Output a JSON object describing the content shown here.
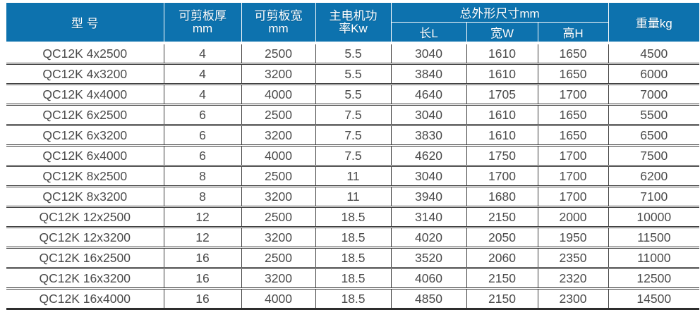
{
  "chart_data": {
    "type": "table",
    "column_keys": [
      "model",
      "cut_thickness",
      "cut_width",
      "motor_power",
      "dim_length",
      "dim_width",
      "dim_height",
      "weight"
    ],
    "header": {
      "model": "型 号",
      "cut_thickness_line1": "可剪板厚",
      "cut_thickness_line2": "mm",
      "cut_width_line1": "可剪板宽",
      "cut_width_line2": "mm",
      "motor_power_line1": "主电机功",
      "motor_power_line2": "率Kw",
      "dimensions_group": "总外形尺寸mm",
      "dim_length": "长L",
      "dim_width": "宽W",
      "dim_height": "高H",
      "weight": "重量kg"
    },
    "rows": [
      [
        "QC12K 4x2500",
        "4",
        "2500",
        "5.5",
        "3040",
        "1610",
        "1650",
        "4500"
      ],
      [
        "QC12K 4x3200",
        "4",
        "3200",
        "5.5",
        "3840",
        "1610",
        "1650",
        "6000"
      ],
      [
        "QC12K 4x4000",
        "4",
        "4000",
        "5.5",
        "4640",
        "1705",
        "1700",
        "7000"
      ],
      [
        "QC12K 6x2500",
        "6",
        "2500",
        "7.5",
        "3040",
        "1610",
        "1650",
        "5500"
      ],
      [
        "QC12K 6x3200",
        "6",
        "3200",
        "7.5",
        "3830",
        "1610",
        "1650",
        "6500"
      ],
      [
        "QC12K 6x4000",
        "6",
        "4000",
        "7.5",
        "4620",
        "1750",
        "1700",
        "7500"
      ],
      [
        "QC12K 8x2500",
        "8",
        "2500",
        "11",
        "3040",
        "1700",
        "1700",
        "6200"
      ],
      [
        "QC12K 8x3200",
        "8",
        "3200",
        "11",
        "3940",
        "1680",
        "1700",
        "7100"
      ],
      [
        "QC12K 12x2500",
        "12",
        "2500",
        "18.5",
        "3140",
        "2150",
        "2000",
        "10000"
      ],
      [
        "QC12K 12x3200",
        "12",
        "3200",
        "18.5",
        "4020",
        "2050",
        "1950",
        "11500"
      ],
      [
        "QC12K 16x2500",
        "16",
        "2500",
        "18.5",
        "3520",
        "2060",
        "2350",
        "11000"
      ],
      [
        "QC12K 16x3200",
        "16",
        "3200",
        "18.5",
        "4060",
        "2150",
        "2320",
        "12500"
      ],
      [
        "QC12K 16x4000",
        "16",
        "4000",
        "18.5",
        "4850",
        "2150",
        "2300",
        "14500"
      ]
    ]
  },
  "colors": {
    "header_bg": "#0d72ae",
    "header_text": "#ffffff",
    "body_text": "#4a4a4a",
    "grid_line": "#3c3c3c"
  }
}
